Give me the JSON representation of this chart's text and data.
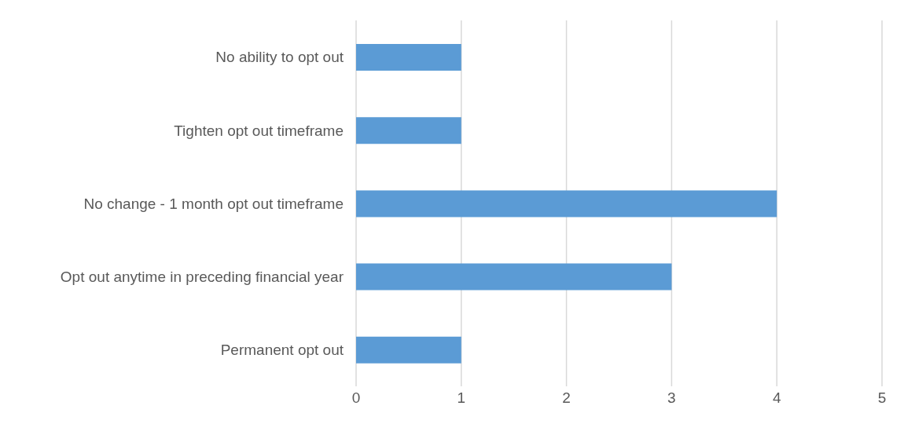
{
  "chart_data": {
    "type": "bar",
    "orientation": "horizontal",
    "categories": [
      "No ability to opt out",
      "Tighten opt out timeframe",
      "No change - 1 month opt out timeframe",
      "Opt out anytime in preceding financial year",
      "Permanent opt out"
    ],
    "values": [
      1,
      1,
      4,
      3,
      1
    ],
    "color": "#5b9bd5",
    "xlim": [
      0,
      5
    ],
    "xticks": [
      0,
      1,
      2,
      3,
      4,
      5
    ],
    "grid": "x"
  }
}
